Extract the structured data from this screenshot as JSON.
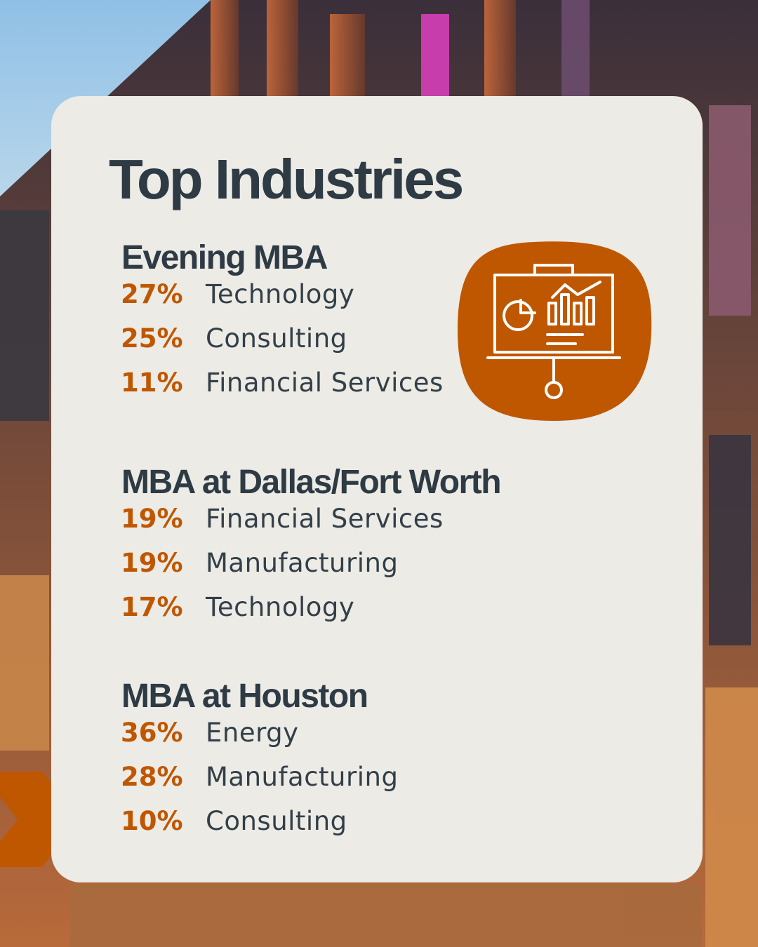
{
  "title": "Top Industries",
  "sections": [
    {
      "heading": "Evening MBA",
      "items": [
        {
          "percent": "27%",
          "label": "Technology"
        },
        {
          "percent": "25%",
          "label": "Consulting"
        },
        {
          "percent": "11%",
          "label": "Financial Services"
        }
      ]
    },
    {
      "heading": "MBA at Dallas/Fort Worth",
      "items": [
        {
          "percent": "19%",
          "label": "Financial Services"
        },
        {
          "percent": "19%",
          "label": "Manufacturing"
        },
        {
          "percent": "17%",
          "label": "Technology"
        }
      ]
    },
    {
      "heading": "MBA at Houston",
      "items": [
        {
          "percent": "36%",
          "label": "Energy"
        },
        {
          "percent": "28%",
          "label": "Manufacturing"
        },
        {
          "percent": "10%",
          "label": "Consulting"
        }
      ]
    }
  ]
}
